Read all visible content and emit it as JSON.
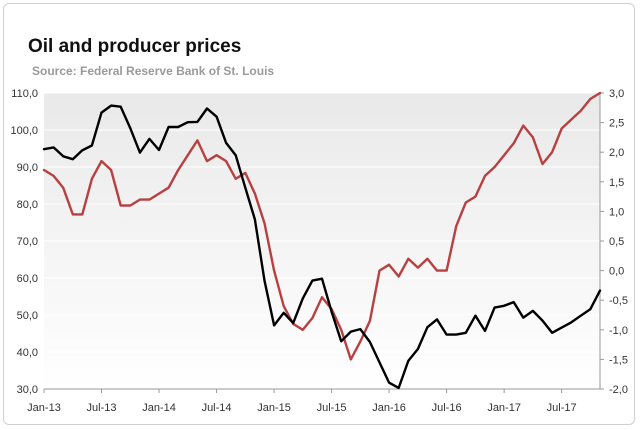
{
  "title": "Oil and producer prices",
  "subtitle": "Source: Federal Reserve Bank of St. Louis",
  "colors": {
    "oil": "#000000",
    "ppi": "#b84040",
    "grid": "#ffffff",
    "bg_top": "#e9e9e9",
    "bg_bottom": "#ffffff"
  },
  "chart_data": {
    "type": "line",
    "title": "Oil and producer prices",
    "subtitle": "Source: Federal Reserve Bank of St. Louis",
    "x_ticks": [
      "Jan-13",
      "Jul-13",
      "Jan-14",
      "Jul-14",
      "Jan-15",
      "Jul-15",
      "Jan-16",
      "Jul-16",
      "Jan-17",
      "Jul-17"
    ],
    "y_left": {
      "ylim": [
        30,
        110
      ],
      "ticks": [
        "110,0",
        "100,0",
        "90,0",
        "80,0",
        "70,0",
        "60,0",
        "50,0",
        "40,0",
        "30,0"
      ]
    },
    "y_right": {
      "ylim": [
        -2.0,
        3.0
      ],
      "ticks": [
        "3,0",
        "2,5",
        "2,0",
        "1,5",
        "1,0",
        "0,5",
        "0,0",
        "-0,5",
        "-1,0",
        "-1,5",
        "-2,0"
      ]
    },
    "grid": true,
    "series": [
      {
        "axis": "left",
        "color": "#000000",
        "values": [
          94.8,
          95.3,
          92.9,
          92.1,
          94.5,
          95.8,
          104.7,
          106.6,
          106.3,
          100.5,
          93.9,
          97.6,
          94.6,
          100.8,
          100.8,
          102.1,
          102.2,
          105.8,
          103.6,
          96.5,
          93.2,
          84.4,
          75.8,
          59.3,
          47.2,
          50.6,
          47.8,
          54.5,
          59.3,
          59.8,
          50.9,
          42.9,
          45.5,
          46.2,
          42.7,
          37.2,
          31.7,
          30.3,
          37.6,
          40.8,
          46.7,
          48.8,
          44.7,
          44.7,
          45.2,
          49.8,
          45.7,
          52.0,
          52.5,
          53.5,
          49.3,
          51.1,
          48.5,
          45.2,
          46.6,
          48.0,
          49.8,
          51.6,
          56.6
        ]
      },
      {
        "axis": "right",
        "color": "#b84040",
        "values": [
          1.7,
          1.6,
          1.4,
          0.95,
          0.95,
          1.55,
          1.85,
          1.7,
          1.1,
          1.1,
          1.2,
          1.2,
          1.3,
          1.4,
          1.7,
          1.95,
          2.2,
          1.85,
          1.95,
          1.85,
          1.55,
          1.65,
          1.3,
          0.8,
          0.0,
          -0.6,
          -0.9,
          -1.0,
          -0.8,
          -0.45,
          -0.65,
          -1.0,
          -1.5,
          -1.2,
          -0.85,
          0.0,
          0.1,
          -0.1,
          0.2,
          0.05,
          0.2,
          0.0,
          0.0,
          0.75,
          1.15,
          1.25,
          1.6,
          1.75,
          1.95,
          2.15,
          2.45,
          2.25,
          1.8,
          2.0,
          2.4,
          2.55,
          2.7,
          2.9,
          3.0
        ]
      }
    ]
  }
}
